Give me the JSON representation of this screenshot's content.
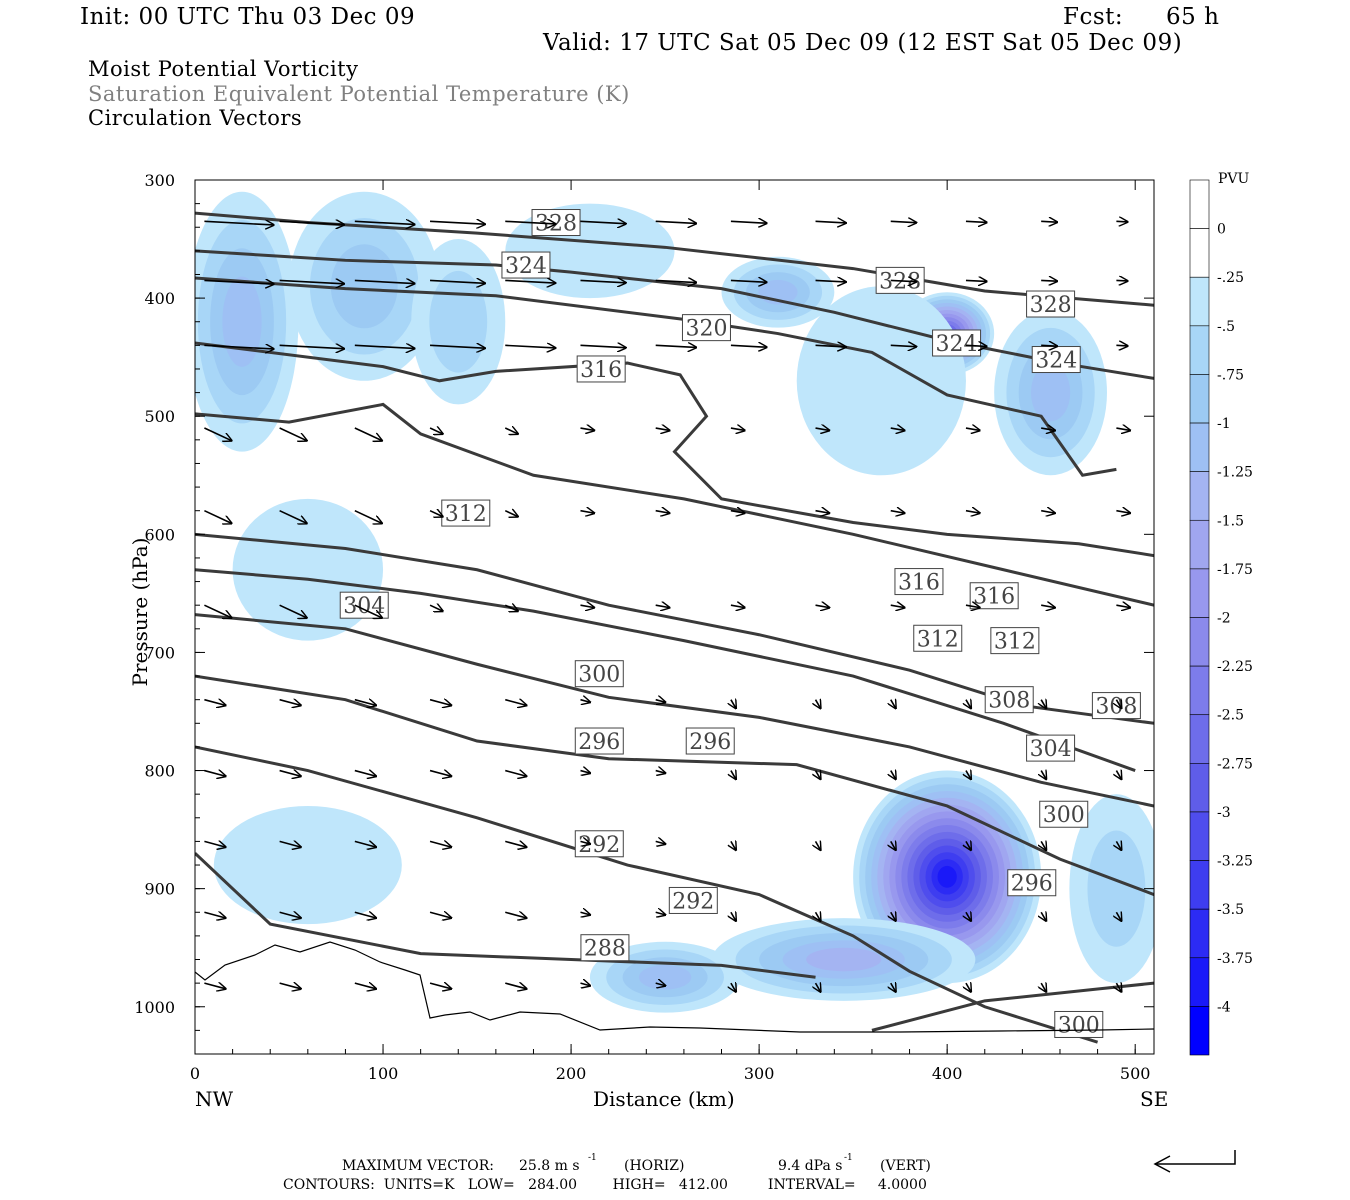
{
  "header": {
    "init": "Init: 00 UTC Thu 03 Dec 09",
    "fcst_label": "Fcst:",
    "fcst_value": "65 h",
    "valid": "Valid: 17 UTC Sat 05 Dec 09 (12 EST Sat 05 Dec 09)"
  },
  "fields": [
    {
      "label": "Moist Potential Vorticity",
      "color": "#000000"
    },
    {
      "label": "Saturation Equivalent Potential Temperature (K)",
      "color": "#808080"
    },
    {
      "label": "Circulation Vectors",
      "color": "#000000"
    }
  ],
  "footer": {
    "vector_label": "MAXIMUM VECTOR:",
    "vector_horiz": "25.8 m s",
    "vector_horiz_unit": "(HORIZ)",
    "vector_vert": "9.4 dPa s",
    "vector_vert_unit": "(VERT)",
    "exponent": "-1",
    "contours": "CONTOURS:  UNITS=K   LOW=   284.00        HIGH=   412.00         INTERVAL=     4.0000"
  },
  "chart_data": {
    "type": "cross-section",
    "xlabel": "Distance (km)",
    "ylabel": "Pressure (hPa)",
    "x_left_label": "NW",
    "x_right_label": "SE",
    "xlim": [
      0,
      510
    ],
    "ylim": [
      300,
      1040
    ],
    "x_ticks": [
      0,
      100,
      200,
      300,
      400,
      500
    ],
    "y_ticks": [
      300,
      400,
      500,
      600,
      700,
      800,
      900,
      1000
    ],
    "colorbar": {
      "unit": "PVU",
      "levels": [
        "0",
        "-.25",
        "-.5",
        "-.75",
        "-1",
        "-1.25",
        "-1.5",
        "-1.75",
        "-2",
        "-2.25",
        "-2.5",
        "-2.75",
        "-3",
        "-3.25",
        "-3.5",
        "-3.75",
        "-4"
      ],
      "colors": [
        "#ffffff",
        "#ffffff",
        "#bfe6fb",
        "#a8d6f7",
        "#9ccaf3",
        "#9ec0f4",
        "#a4b4f2",
        "#a0a6f0",
        "#9898ee",
        "#8b8aec",
        "#7d7ceb",
        "#6e6dea",
        "#5f5de9",
        "#4f4ded",
        "#3e3df0",
        "#2c2bf4",
        "#1a19f8",
        "#0000ff"
      ]
    },
    "theta_contours": [
      {
        "value": 328,
        "points": [
          [
            0,
            328
          ],
          [
            60,
            336
          ],
          [
            150,
            345
          ],
          [
            250,
            357
          ],
          [
            350,
            375
          ],
          [
            420,
            394
          ],
          [
            510,
            406
          ]
        ],
        "labels": [
          [
            192,
            336
          ],
          [
            375,
            385
          ],
          [
            455,
            405
          ]
        ]
      },
      {
        "value": 324,
        "points": [
          [
            0,
            360
          ],
          [
            80,
            368
          ],
          [
            160,
            372
          ],
          [
            200,
            378
          ],
          [
            280,
            392
          ],
          [
            340,
            412
          ],
          [
            400,
            436
          ],
          [
            460,
            455
          ],
          [
            510,
            468
          ]
        ],
        "labels": [
          [
            176,
            372
          ],
          [
            405,
            438
          ],
          [
            458,
            452
          ]
        ]
      },
      {
        "value": 320,
        "points": [
          [
            0,
            383
          ],
          [
            80,
            392
          ],
          [
            160,
            398
          ],
          [
            260,
            418
          ],
          [
            310,
            430
          ],
          [
            360,
            446
          ],
          [
            400,
            482
          ],
          [
            450,
            500
          ],
          [
            472,
            550
          ],
          [
            490,
            545
          ]
        ],
        "labels": [
          [
            272,
            425
          ]
        ]
      },
      {
        "value": 316,
        "points": [
          [
            0,
            438
          ],
          [
            100,
            458
          ],
          [
            130,
            470
          ],
          [
            160,
            462
          ],
          [
            230,
            455
          ],
          [
            258,
            465
          ],
          [
            272,
            500
          ],
          [
            255,
            530
          ],
          [
            280,
            570
          ],
          [
            350,
            590
          ],
          [
            400,
            600
          ],
          [
            470,
            608
          ],
          [
            510,
            618
          ]
        ],
        "labels": [
          [
            216,
            460
          ],
          [
            385,
            640
          ],
          [
            425,
            652
          ]
        ]
      },
      {
        "value": 312,
        "points": [
          [
            0,
            498
          ],
          [
            50,
            505
          ],
          [
            100,
            490
          ],
          [
            120,
            515
          ],
          [
            180,
            550
          ],
          [
            260,
            570
          ],
          [
            350,
            600
          ],
          [
            430,
            630
          ],
          [
            510,
            660
          ]
        ],
        "labels": [
          [
            144,
            582
          ],
          [
            395,
            688
          ],
          [
            436,
            690
          ]
        ]
      },
      {
        "value": 304,
        "points": [
          [
            0,
            630
          ],
          [
            60,
            638
          ],
          [
            120,
            650
          ],
          [
            180,
            665
          ],
          [
            260,
            690
          ],
          [
            350,
            720
          ],
          [
            430,
            760
          ],
          [
            500,
            800
          ]
        ],
        "labels": [
          [
            90,
            660
          ],
          [
            455,
            781
          ]
        ]
      },
      {
        "value": 300,
        "points": [
          [
            0,
            668
          ],
          [
            80,
            680
          ],
          [
            150,
            710
          ],
          [
            220,
            738
          ],
          [
            300,
            755
          ],
          [
            380,
            780
          ],
          [
            450,
            810
          ],
          [
            510,
            830
          ]
        ],
        "labels": [
          [
            215,
            718
          ],
          [
            462,
            837
          ]
        ]
      },
      {
        "value": 308,
        "points": [
          [
            0,
            600
          ],
          [
            80,
            612
          ],
          [
            150,
            630
          ],
          [
            220,
            660
          ],
          [
            300,
            685
          ],
          [
            380,
            715
          ],
          [
            440,
            745
          ],
          [
            510,
            760
          ]
        ],
        "labels": [
          [
            433,
            740
          ],
          [
            490,
            745
          ]
        ]
      },
      {
        "value": 296,
        "points": [
          [
            0,
            720
          ],
          [
            80,
            740
          ],
          [
            150,
            775
          ],
          [
            220,
            790
          ],
          [
            320,
            795
          ],
          [
            400,
            830
          ],
          [
            460,
            875
          ],
          [
            510,
            905
          ]
        ],
        "labels": [
          [
            215,
            775
          ],
          [
            274,
            775
          ],
          [
            445,
            895
          ]
        ]
      },
      {
        "value": 292,
        "points": [
          [
            0,
            780
          ],
          [
            60,
            800
          ],
          [
            150,
            840
          ],
          [
            230,
            880
          ],
          [
            300,
            905
          ],
          [
            350,
            940
          ],
          [
            380,
            970
          ],
          [
            420,
            1000
          ],
          [
            480,
            1030
          ]
        ],
        "labels": [
          [
            215,
            862
          ],
          [
            265,
            910
          ]
        ]
      },
      {
        "value": 288,
        "points": [
          [
            0,
            870
          ],
          [
            40,
            930
          ],
          [
            120,
            955
          ],
          [
            200,
            960
          ],
          [
            280,
            965
          ],
          [
            330,
            975
          ]
        ],
        "labels": [
          [
            218,
            950
          ]
        ]
      },
      {
        "value": 300,
        "points": [
          [
            360,
            1020
          ],
          [
            420,
            995
          ],
          [
            480,
            985
          ],
          [
            510,
            980
          ]
        ],
        "labels": [
          [
            470,
            1015
          ]
        ]
      }
    ],
    "pv_regions": [
      {
        "cx": 25,
        "cy": 420,
        "rx": 30,
        "ry": 110,
        "min": -1.25
      },
      {
        "cx": 90,
        "cy": 390,
        "rx": 40,
        "ry": 80,
        "min": -1
      },
      {
        "cx": 140,
        "cy": 420,
        "rx": 25,
        "ry": 70,
        "min": -0.75
      },
      {
        "cx": 210,
        "cy": 360,
        "rx": 45,
        "ry": 40,
        "min": -0.5
      },
      {
        "cx": 310,
        "cy": 395,
        "rx": 30,
        "ry": 30,
        "min": -1.25
      },
      {
        "cx": 400,
        "cy": 430,
        "rx": 25,
        "ry": 35,
        "min": -3
      },
      {
        "cx": 365,
        "cy": 470,
        "rx": 45,
        "ry": 80,
        "min": -0.5
      },
      {
        "cx": 455,
        "cy": 480,
        "rx": 30,
        "ry": 70,
        "min": -1.25
      },
      {
        "cx": 400,
        "cy": 890,
        "rx": 50,
        "ry": 90,
        "min": -4
      },
      {
        "cx": 345,
        "cy": 960,
        "rx": 70,
        "ry": 35,
        "min": -1.5
      },
      {
        "cx": 250,
        "cy": 975,
        "rx": 40,
        "ry": 30,
        "min": -1.25
      },
      {
        "cx": 490,
        "cy": 900,
        "rx": 25,
        "ry": 80,
        "min": -0.75
      },
      {
        "cx": 60,
        "cy": 880,
        "rx": 50,
        "ry": 50,
        "min": -0.5
      },
      {
        "cx": 60,
        "cy": 630,
        "rx": 40,
        "ry": 60,
        "min": -0.5
      }
    ]
  }
}
